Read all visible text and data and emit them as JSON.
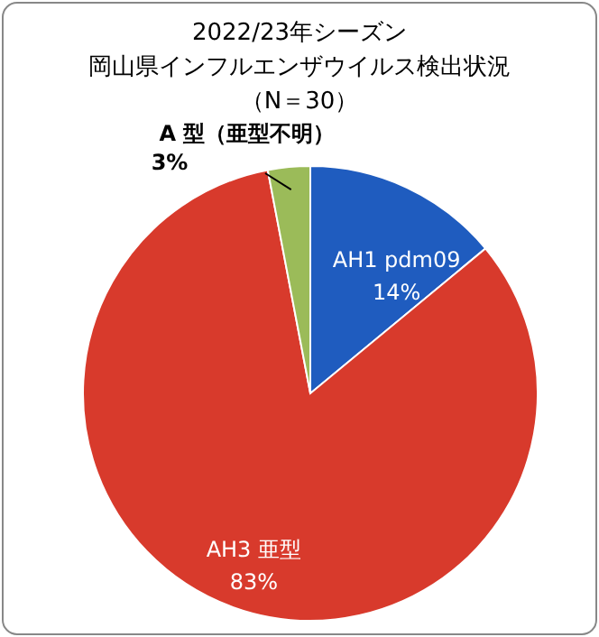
{
  "chart_data": {
    "type": "pie",
    "title": "2022/23年シーズン",
    "subtitle": "岡山県インフルエンザウイルス検出状況",
    "annotations": [
      "（N＝30）"
    ],
    "categories": [
      "AH1 pdm09",
      "AH3 亜型",
      "A 型（亜型不明）"
    ],
    "values": [
      14,
      83,
      3
    ],
    "colors": [
      "#1f5cbf",
      "#d83a2c",
      "#9bbb59"
    ],
    "value_labels": [
      "14%",
      "83%",
      "3%"
    ]
  }
}
